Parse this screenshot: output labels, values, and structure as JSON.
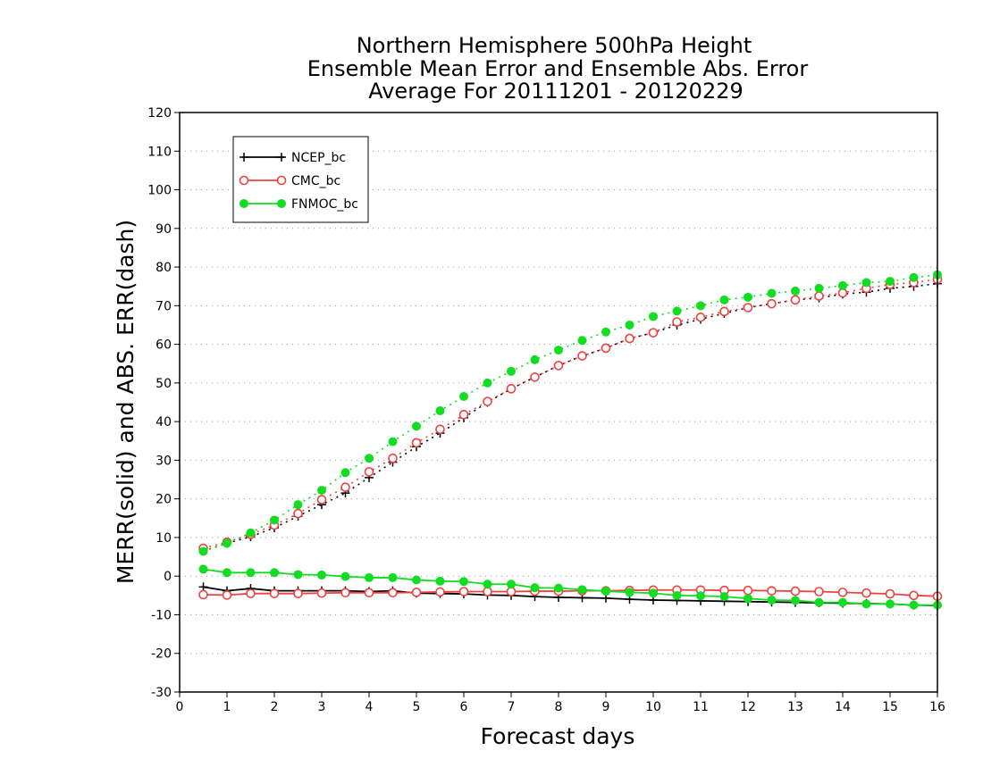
{
  "chart_data": {
    "type": "line",
    "title_lines": [
      "Northern Hemisphere 500hPa Height",
      "Ensemble Mean Error and Ensemble Abs. Error",
      "Average For 20111201 - 20120229"
    ],
    "xlabel": "Forecast days",
    "ylabel": "MERR(solid) and ABS. ERR(dash)",
    "xlim": [
      0,
      16
    ],
    "ylim": [
      -30,
      120
    ],
    "x_ticks": [
      0,
      1,
      2,
      3,
      4,
      5,
      6,
      7,
      8,
      9,
      10,
      11,
      12,
      13,
      14,
      15,
      16
    ],
    "y_ticks": [
      -30,
      -20,
      -10,
      0,
      10,
      20,
      30,
      40,
      50,
      60,
      70,
      80,
      90,
      100,
      110,
      120
    ],
    "grid": "horizontal dotted",
    "legend_position": "top-left",
    "x": [
      0.5,
      1,
      1.5,
      2,
      2.5,
      3,
      3.5,
      4,
      4.5,
      5,
      5.5,
      6,
      6.5,
      7,
      7.5,
      8,
      8.5,
      9,
      9.5,
      10,
      10.5,
      11,
      11.5,
      12,
      12.5,
      13,
      13.5,
      14,
      14.5,
      15,
      15.5,
      16
    ],
    "series": [
      {
        "name": "NCEP_bc",
        "color": "#000000",
        "marker": "plus",
        "merr": [
          -2.8,
          -3.8,
          -3.2,
          -3.8,
          -3.8,
          -3.8,
          -3.8,
          -4.0,
          -3.8,
          -4.4,
          -4.5,
          -4.6,
          -4.9,
          -5.0,
          -5.3,
          -5.5,
          -5.6,
          -5.7,
          -6.0,
          -6.2,
          -6.3,
          -6.4,
          -6.5,
          -6.6,
          -6.7,
          -6.8,
          -6.9,
          -7.0,
          -7.1,
          -7.2,
          -7.5,
          -7.6
        ],
        "abs_err": [
          6.5,
          8.5,
          10.2,
          12.5,
          15.5,
          18.5,
          21.5,
          25.5,
          29.5,
          33.5,
          37.0,
          41.0,
          45.0,
          48.5,
          51.5,
          54.5,
          57.0,
          59.0,
          61.5,
          63.0,
          65.0,
          66.5,
          68.0,
          69.5,
          70.5,
          71.5,
          72.0,
          73.0,
          73.5,
          74.5,
          75.0,
          75.7
        ]
      },
      {
        "name": "CMC_bc",
        "color": "#f04040",
        "marker": "open-circle",
        "merr": [
          -4.8,
          -4.9,
          -4.5,
          -4.5,
          -4.5,
          -4.4,
          -4.3,
          -4.3,
          -4.3,
          -4.2,
          -4.1,
          -4.0,
          -4.0,
          -4.0,
          -3.9,
          -3.9,
          -3.8,
          -3.8,
          -3.7,
          -3.6,
          -3.6,
          -3.6,
          -3.7,
          -3.7,
          -3.8,
          -3.9,
          -4.0,
          -4.2,
          -4.4,
          -4.6,
          -5.0,
          -5.2
        ],
        "abs_err": [
          7.2,
          8.8,
          10.8,
          13.2,
          16.2,
          19.8,
          23.0,
          27.0,
          30.5,
          34.5,
          38.0,
          41.8,
          45.2,
          48.5,
          51.5,
          54.5,
          57.0,
          59.0,
          61.5,
          63.0,
          65.8,
          67.0,
          68.5,
          69.5,
          70.5,
          71.5,
          72.5,
          73.3,
          74.5,
          75.5,
          76.0,
          76.8
        ]
      },
      {
        "name": "FNMOC_bc",
        "color": "#11dd22",
        "marker": "filled-circle",
        "merr": [
          1.8,
          0.9,
          0.9,
          0.9,
          0.4,
          0.3,
          -0.1,
          -0.4,
          -0.4,
          -1.0,
          -1.3,
          -1.4,
          -2.1,
          -2.1,
          -3.0,
          -3.1,
          -3.5,
          -3.9,
          -4.2,
          -4.4,
          -5.0,
          -5.1,
          -5.3,
          -5.8,
          -6.2,
          -6.3,
          -6.8,
          -6.8,
          -7.2,
          -7.2,
          -7.5,
          -7.5
        ],
        "abs_err": [
          6.4,
          8.5,
          11.2,
          14.5,
          18.5,
          22.2,
          26.8,
          30.5,
          34.8,
          38.8,
          42.8,
          46.5,
          50.0,
          53.0,
          56.0,
          58.5,
          61.0,
          63.2,
          65.0,
          67.2,
          68.6,
          70.0,
          71.5,
          72.2,
          73.2,
          73.8,
          74.5,
          75.2,
          76.0,
          76.3,
          77.3,
          78.0
        ]
      }
    ]
  }
}
